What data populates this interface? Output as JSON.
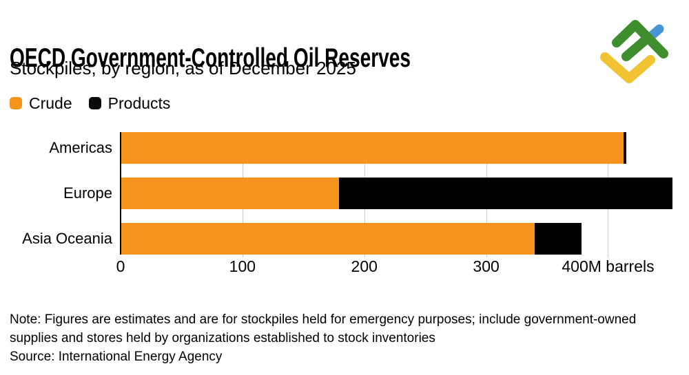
{
  "header": {
    "title": "OECD Government-Controlled Oil Reserves",
    "subtitle": "Stockpiles, by region, as of December 2025"
  },
  "legend": {
    "items": [
      {
        "label": "Crude",
        "color": "#F7941E"
      },
      {
        "label": "Products",
        "color": "#0A0A0A"
      }
    ]
  },
  "chart_data": {
    "type": "bar",
    "orientation": "horizontal",
    "stacked": true,
    "title": "OECD Government-Controlled Oil Reserves",
    "subtitle": "Stockpiles, by region, as of December 2025",
    "unit": "M barrels",
    "categories": [
      "Americas",
      "Europe",
      "Asia Oceania"
    ],
    "series": [
      {
        "name": "Crude",
        "color": "#F7941E",
        "values": [
          413,
          179,
          340
        ]
      },
      {
        "name": "Products",
        "color": "#000000",
        "values": [
          2,
          274,
          38
        ]
      }
    ],
    "xlim": [
      0,
      454
    ],
    "ticks": [
      {
        "value": 0,
        "label": "0"
      },
      {
        "value": 100,
        "label": "100"
      },
      {
        "value": 200,
        "label": "200"
      },
      {
        "value": 300,
        "label": "300"
      },
      {
        "value": 400,
        "label": "400M barrels"
      }
    ],
    "grid": "vertical",
    "gridline_color": "#CCCCCC",
    "legend_position": "top-left"
  },
  "footer": {
    "note": "Note: Figures are estimates and are for stockpiles held for emergency purposes; include government-owned supplies and stores held by organizations established to stock inventories",
    "source": "Source: International Energy Agency"
  },
  "logo": {
    "name": "LiteFinance",
    "colors": {
      "green": "#3E8E2D",
      "blue": "#4795D6",
      "yellow": "#F2C331"
    }
  }
}
